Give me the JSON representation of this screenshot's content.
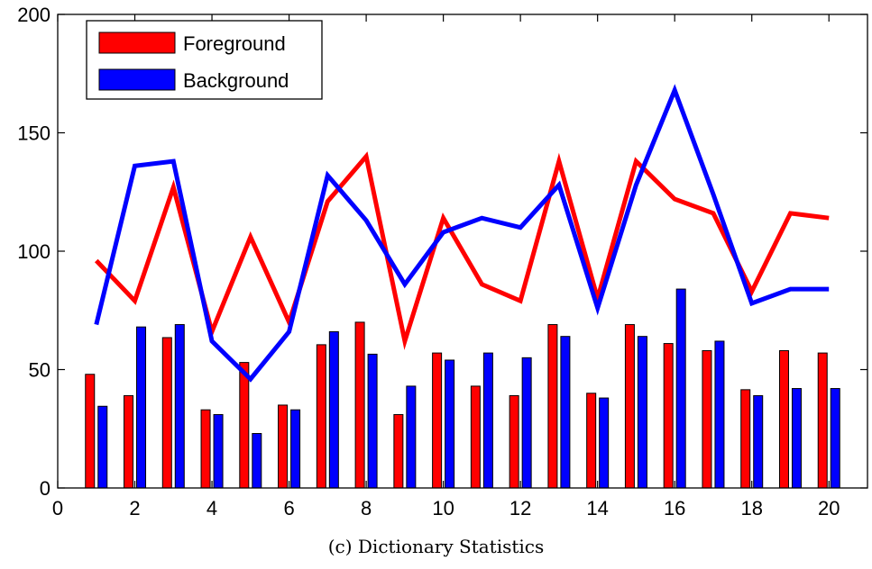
{
  "caption": "(c) Dictionary Statistics",
  "colors": {
    "foreground": "#ff0000",
    "background": "#0000ff",
    "axis": "#000000"
  },
  "chart_data": {
    "type": "bar",
    "title": "",
    "xlabel": "",
    "ylabel": "",
    "xlim": [
      0,
      21
    ],
    "ylim": [
      0,
      200
    ],
    "xticks": [
      0,
      2,
      4,
      6,
      8,
      10,
      12,
      14,
      16,
      18,
      20
    ],
    "yticks": [
      0,
      50,
      100,
      150,
      200
    ],
    "grid": false,
    "legend_position": "top-left",
    "x": [
      1,
      2,
      3,
      4,
      5,
      6,
      7,
      8,
      9,
      10,
      11,
      12,
      13,
      14,
      15,
      16,
      17,
      18,
      19,
      20
    ],
    "series": [
      {
        "name": "Foreground",
        "color": "#ff0000",
        "bar_values": [
          48,
          39,
          63.5,
          33,
          53,
          35,
          60.5,
          70,
          31,
          57,
          43,
          39,
          69,
          40,
          69,
          61,
          58,
          41.5,
          58,
          57
        ],
        "line_values": [
          96,
          79,
          127,
          66,
          106,
          70,
          121,
          140,
          62,
          114,
          86,
          79,
          138,
          80,
          138,
          122,
          116,
          83,
          116,
          114
        ]
      },
      {
        "name": "Background",
        "color": "#0000ff",
        "bar_values": [
          34.5,
          68,
          69,
          31,
          23,
          33,
          66,
          56.5,
          43,
          54,
          57,
          55,
          64,
          38,
          64,
          84,
          62,
          39,
          42,
          42
        ],
        "line_values": [
          69,
          136,
          138,
          62,
          46,
          66,
          132,
          113,
          86,
          108,
          114,
          110,
          128,
          76,
          128,
          168,
          124,
          78,
          84,
          84
        ]
      }
    ]
  }
}
